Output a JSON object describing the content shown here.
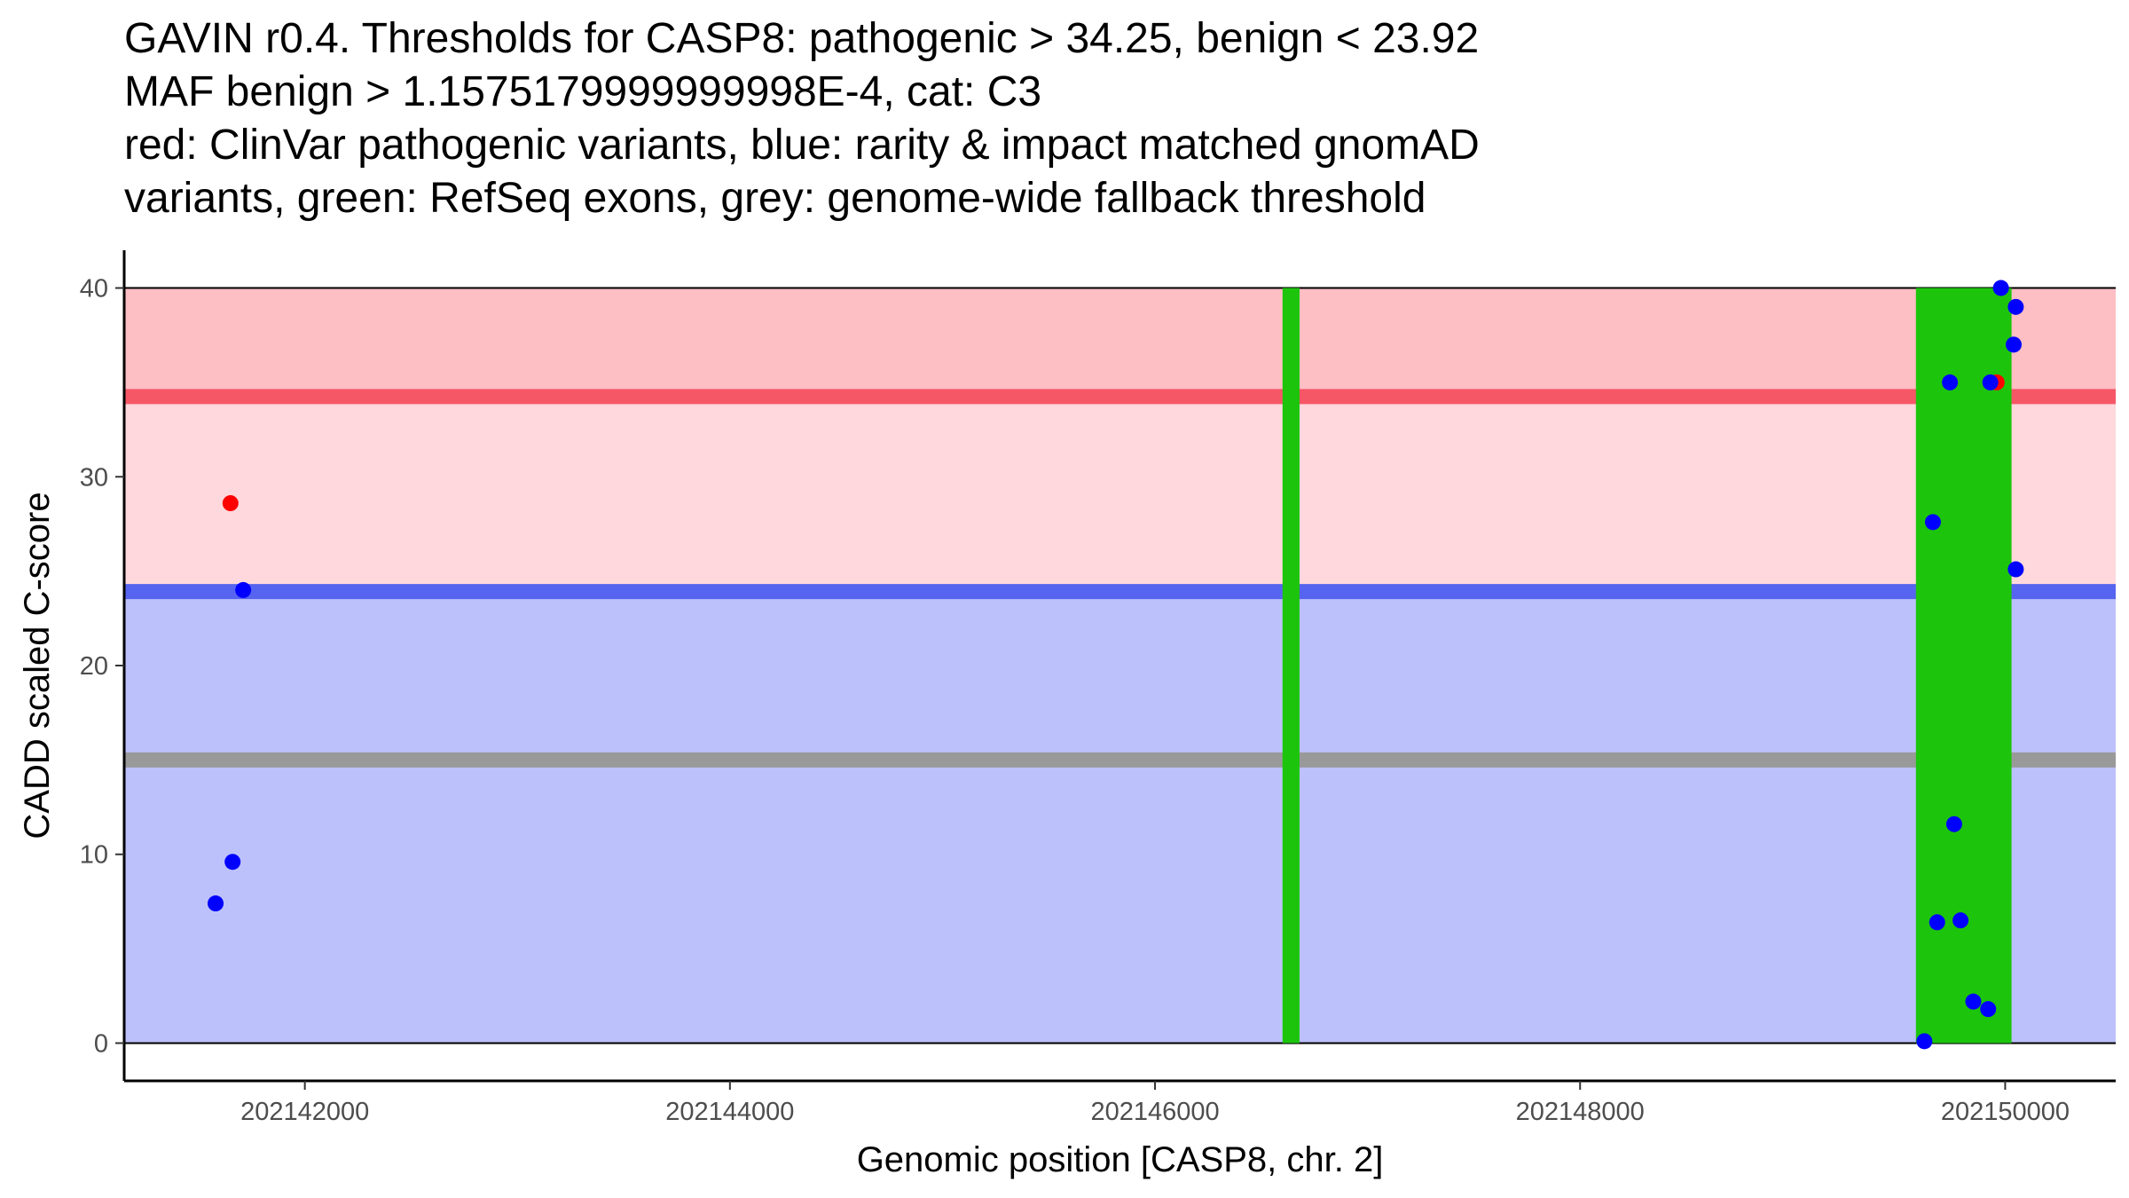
{
  "title_lines": [
    "GAVIN r0.4. Thresholds for CASP8: pathogenic > 34.25, benign < 23.92",
    "MAF benign > 1.1575179999999998E-4, cat: C3",
    "red: ClinVar pathogenic variants, blue: rarity & impact matched gnomAD",
    "variants, green: RefSeq exons, grey: genome-wide fallback threshold"
  ],
  "chart_data": {
    "type": "scatter",
    "xlabel": "Genomic position [CASP8, chr. 2]",
    "ylabel": "CADD scaled C-score",
    "xlim": [
      202141150,
      202150520
    ],
    "ylim": [
      -2,
      42
    ],
    "x_ticks": [
      202142000,
      202144000,
      202146000,
      202148000,
      202150000
    ],
    "y_ticks": [
      0,
      10,
      20,
      30,
      40
    ],
    "thresholds": {
      "pathogenic": 34.25,
      "benign": 23.92,
      "genome_wide_fallback": 15
    },
    "bands": [
      {
        "name": "pathogenic-zone",
        "y0": 34.25,
        "y1": 40,
        "color": "#fdbec4"
      },
      {
        "name": "intermediate-zone",
        "y0": 23.92,
        "y1": 34.25,
        "color": "#fed8dc"
      },
      {
        "name": "benign-zone",
        "y0": 0,
        "y1": 23.92,
        "color": "#bcc1fb"
      }
    ],
    "threshold_lines": [
      {
        "name": "pathogenic-threshold-line",
        "y": 34.25,
        "color": "#f65766"
      },
      {
        "name": "benign-threshold-line",
        "y": 23.92,
        "color": "#5664ef"
      },
      {
        "name": "fallback-threshold-line",
        "y": 15,
        "color": "#999999"
      }
    ],
    "exons": [
      {
        "start": 202146600,
        "end": 202146680,
        "color": "#1cc50c"
      },
      {
        "start": 202149580,
        "end": 202150030,
        "color": "#1cc50c"
      }
    ],
    "series": [
      {
        "name": "ClinVar pathogenic variants",
        "color": "#ff0000",
        "points": [
          {
            "x": 202141650,
            "y": 28.6
          },
          {
            "x": 202149960,
            "y": 35.0
          }
        ]
      },
      {
        "name": "rarity & impact matched gnomAD variants",
        "color": "#0000ff",
        "points": [
          {
            "x": 202141580,
            "y": 7.4
          },
          {
            "x": 202141660,
            "y": 9.6
          },
          {
            "x": 202141710,
            "y": 24.0
          },
          {
            "x": 202149620,
            "y": 0.1
          },
          {
            "x": 202149660,
            "y": 27.6
          },
          {
            "x": 202149680,
            "y": 6.4
          },
          {
            "x": 202149740,
            "y": 35.0
          },
          {
            "x": 202149760,
            "y": 11.6
          },
          {
            "x": 202149790,
            "y": 6.5
          },
          {
            "x": 202149850,
            "y": 2.2
          },
          {
            "x": 202149920,
            "y": 1.8
          },
          {
            "x": 202149930,
            "y": 35.0
          },
          {
            "x": 202149980,
            "y": 40.0
          },
          {
            "x": 202150040,
            "y": 37.0
          },
          {
            "x": 202150050,
            "y": 39.0
          },
          {
            "x": 202150050,
            "y": 25.1
          }
        ]
      }
    ]
  }
}
